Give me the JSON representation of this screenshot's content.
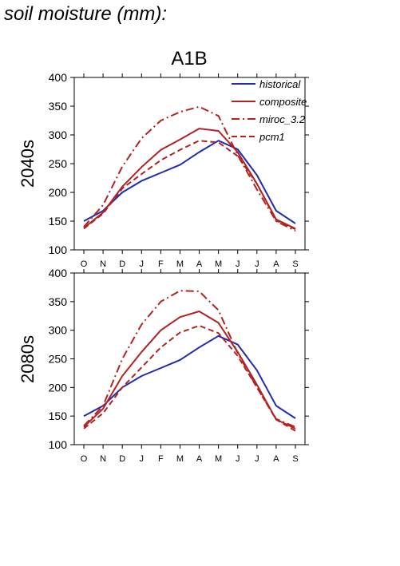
{
  "page_title": "soil moisture (mm):",
  "scenario": "A1B",
  "legend": [
    {
      "label": "historical",
      "color": "#1f2bb0",
      "dash": "solid"
    },
    {
      "label": "composite",
      "color": "#b22222",
      "dash": "solid"
    },
    {
      "label": "miroc_3.2",
      "color": "#b22222",
      "dash": "dashdot"
    },
    {
      "label": "pcm1",
      "color": "#b22222",
      "dash": "dashed"
    }
  ],
  "chart_data": [
    {
      "type": "line",
      "title": "A1B",
      "ylabel": "2040s",
      "categories": [
        "O",
        "N",
        "D",
        "J",
        "F",
        "M",
        "A",
        "M",
        "J",
        "J",
        "A",
        "S"
      ],
      "ylim": [
        100,
        400
      ],
      "yticks": [
        100,
        150,
        200,
        250,
        300,
        350,
        400
      ],
      "series": [
        {
          "name": "historical",
          "values": [
            150,
            168,
            200,
            220,
            234,
            248,
            270,
            290,
            275,
            230,
            168,
            146
          ]
        },
        {
          "name": "composite",
          "values": [
            138,
            165,
            210,
            244,
            274,
            292,
            311,
            307,
            270,
            215,
            153,
            137
          ]
        },
        {
          "name": "miroc_3.2",
          "values": [
            140,
            178,
            245,
            294,
            325,
            340,
            349,
            333,
            265,
            205,
            150,
            133
          ]
        },
        {
          "name": "pcm1",
          "values": [
            137,
            163,
            207,
            232,
            256,
            274,
            290,
            287,
            263,
            215,
            151,
            136
          ]
        }
      ]
    },
    {
      "type": "line",
      "title": "",
      "ylabel": "2080s",
      "categories": [
        "O",
        "N",
        "D",
        "J",
        "F",
        "M",
        "A",
        "M",
        "J",
        "J",
        "A",
        "S"
      ],
      "ylim": [
        100,
        400
      ],
      "yticks": [
        100,
        150,
        200,
        250,
        300,
        350,
        400
      ],
      "series": [
        {
          "name": "historical",
          "values": [
            150,
            168,
            200,
            220,
            234,
            248,
            270,
            290,
            275,
            230,
            168,
            146
          ]
        },
        {
          "name": "composite",
          "values": [
            131,
            163,
            220,
            262,
            300,
            323,
            333,
            313,
            262,
            205,
            144,
            128
          ]
        },
        {
          "name": "miroc_3.2",
          "values": [
            133,
            168,
            250,
            310,
            350,
            369,
            368,
            335,
            260,
            200,
            145,
            131
          ]
        },
        {
          "name": "pcm1",
          "values": [
            128,
            155,
            200,
            235,
            270,
            296,
            308,
            295,
            255,
            200,
            144,
            124
          ]
        }
      ]
    }
  ]
}
